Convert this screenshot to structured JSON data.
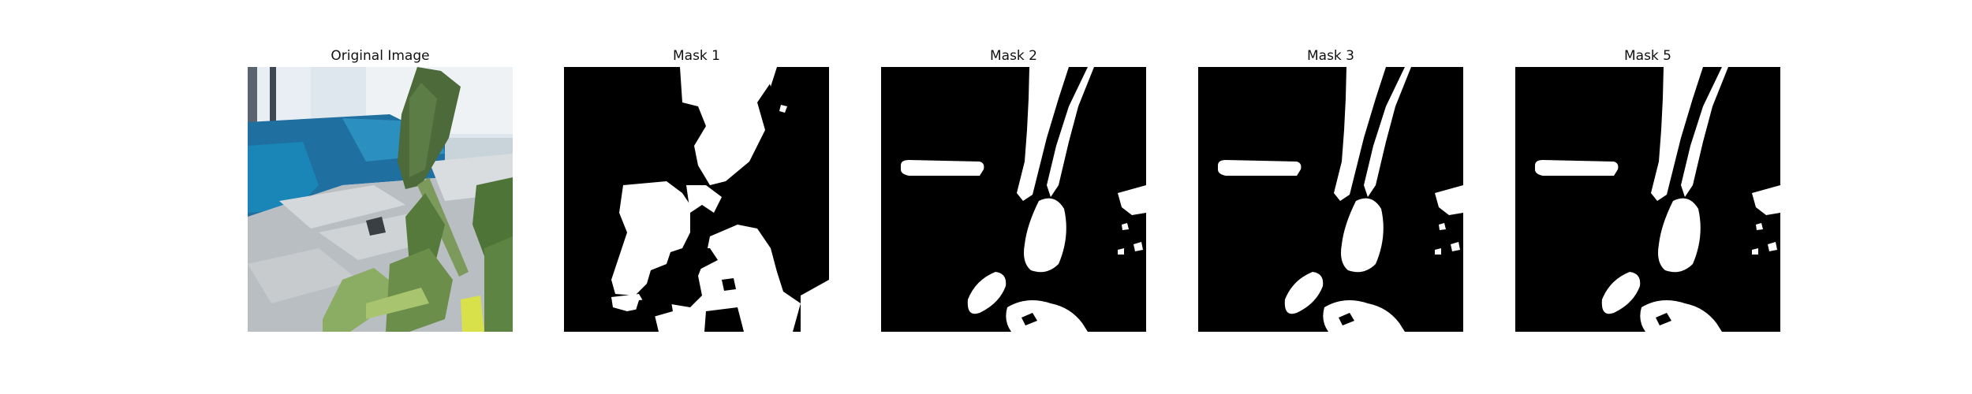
{
  "figure": {
    "panels": [
      {
        "id": "original",
        "title": "Original Image"
      },
      {
        "id": "mask1",
        "title": "Mask 1"
      },
      {
        "id": "mask2",
        "title": "Mask 2"
      },
      {
        "id": "mask3",
        "title": "Mask 3"
      },
      {
        "id": "mask5",
        "title": "Mask 5"
      }
    ]
  },
  "colors": {
    "background": "#ffffff",
    "mask_foreground": "#ffffff",
    "mask_background": "#000000",
    "title_text": "#111111"
  }
}
